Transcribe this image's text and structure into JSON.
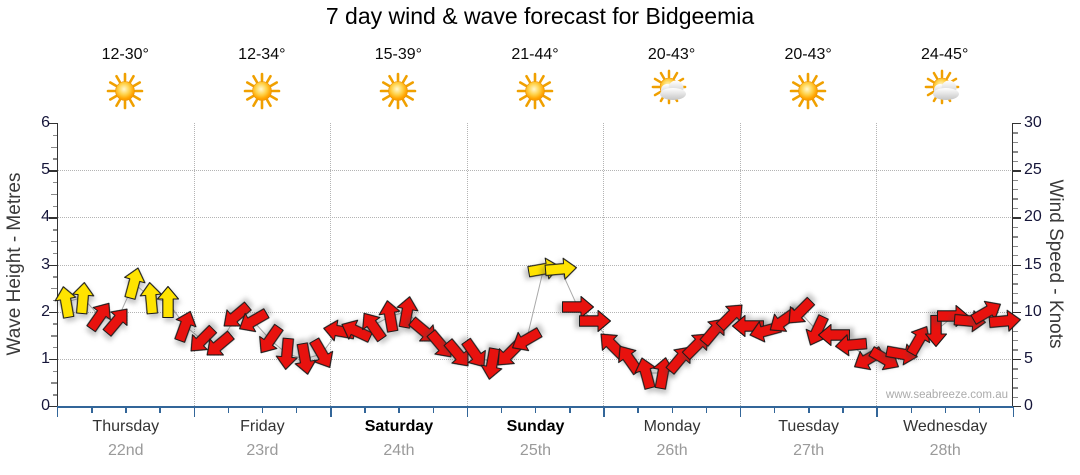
{
  "title": "7 day wind & wave forecast for Bidgeemia",
  "watermark": "www.seabreeze.com.au",
  "axis_left": {
    "title": "Wave Height - Metres",
    "min": 0,
    "max": 6,
    "major_step": 1,
    "unit": "metres"
  },
  "axis_right": {
    "title": "Wind Speed - Knots",
    "min": 0,
    "max": 30,
    "major_step": 5,
    "unit": "knots"
  },
  "days": [
    {
      "name": "Thursday",
      "date": "22nd",
      "temp": "12-30°",
      "icon": "sunny",
      "weekend": false
    },
    {
      "name": "Friday",
      "date": "23rd",
      "temp": "12-34°",
      "icon": "sunny",
      "weekend": false
    },
    {
      "name": "Saturday",
      "date": "24th",
      "temp": "15-39°",
      "icon": "sunny",
      "weekend": true
    },
    {
      "name": "Sunday",
      "date": "25th",
      "temp": "21-44°",
      "icon": "sunny",
      "weekend": true
    },
    {
      "name": "Monday",
      "date": "26th",
      "temp": "20-43°",
      "icon": "partly-cloudy",
      "weekend": false
    },
    {
      "name": "Tuesday",
      "date": "27th",
      "temp": "20-43°",
      "icon": "sunny",
      "weekend": false
    },
    {
      "name": "Wednesday",
      "date": "28th",
      "temp": "24-45°",
      "icon": "partly-cloudy",
      "weekend": false
    }
  ],
  "colors": {
    "arrow_yellow": "#ffe300",
    "arrow_red": "#e8120e",
    "arrow_outline": "#1a1a1a",
    "axis_blue": "#336699",
    "grid_gray": "#b4b4b4",
    "tick_text": "#16163a",
    "day_text": "#333333",
    "date_text": "#9a9a9a",
    "watermark_text": "#ababab"
  },
  "chart_data": {
    "type": "wind-arrow-forecast",
    "interval_hours": 3,
    "arrows_per_day": 8,
    "wind_speed_axis": {
      "min": 0,
      "max": 30,
      "unit": "knots"
    },
    "wave_height_axis": {
      "min": 0,
      "max": 6,
      "unit": "metres"
    },
    "direction_convention": "degrees clockwise from up (north); arrow points toward direction of motion",
    "categories": [
      "Thursday 22nd",
      "Friday 23rd",
      "Saturday 24th",
      "Sunday 25th",
      "Monday 26th",
      "Tuesday 27th",
      "Wednesday 28th"
    ],
    "arrows": [
      {
        "kn": 11,
        "dir": 350,
        "col": "yellow"
      },
      {
        "kn": 11.5,
        "dir": 5,
        "col": "yellow"
      },
      {
        "kn": 9.5,
        "dir": 35,
        "col": "red"
      },
      {
        "kn": 9,
        "dir": 40,
        "col": "red"
      },
      {
        "kn": 13,
        "dir": 15,
        "col": "yellow"
      },
      {
        "kn": 11.5,
        "dir": 355,
        "col": "yellow"
      },
      {
        "kn": 11,
        "dir": 0,
        "col": "yellow"
      },
      {
        "kn": 8.5,
        "dir": 20,
        "col": "red"
      },
      {
        "kn": 7,
        "dir": 225,
        "col": "red"
      },
      {
        "kn": 6.5,
        "dir": 230,
        "col": "red"
      },
      {
        "kn": 9.5,
        "dir": 230,
        "col": "red"
      },
      {
        "kn": 9,
        "dir": 240,
        "col": "red"
      },
      {
        "kn": 7,
        "dir": 215,
        "col": "red"
      },
      {
        "kn": 5.5,
        "dir": 185,
        "col": "red"
      },
      {
        "kn": 5,
        "dir": 170,
        "col": "red"
      },
      {
        "kn": 5.5,
        "dir": 150,
        "col": "red"
      },
      {
        "kn": 8,
        "dir": 280,
        "col": "red"
      },
      {
        "kn": 8,
        "dir": 295,
        "col": "red"
      },
      {
        "kn": 8.5,
        "dir": 325,
        "col": "red"
      },
      {
        "kn": 9.5,
        "dir": 350,
        "col": "red"
      },
      {
        "kn": 10,
        "dir": 10,
        "col": "red"
      },
      {
        "kn": 8,
        "dir": 130,
        "col": "red"
      },
      {
        "kn": 6.5,
        "dir": 140,
        "col": "red"
      },
      {
        "kn": 5.5,
        "dir": 140,
        "col": "red"
      },
      {
        "kn": 5.5,
        "dir": 145,
        "col": "red"
      },
      {
        "kn": 4.5,
        "dir": 190,
        "col": "red"
      },
      {
        "kn": 5.5,
        "dir": 225,
        "col": "red"
      },
      {
        "kn": 7,
        "dir": 240,
        "col": "red"
      },
      {
        "kn": 14.5,
        "dir": 80,
        "col": "yellow"
      },
      {
        "kn": 14.5,
        "dir": 85,
        "col": "yellow"
      },
      {
        "kn": 10.5,
        "dir": 90,
        "col": "red"
      },
      {
        "kn": 9,
        "dir": 90,
        "col": "red"
      },
      {
        "kn": 6.5,
        "dir": 315,
        "col": "red"
      },
      {
        "kn": 5,
        "dir": 325,
        "col": "red"
      },
      {
        "kn": 3.5,
        "dir": 345,
        "col": "red"
      },
      {
        "kn": 3.5,
        "dir": 10,
        "col": "red"
      },
      {
        "kn": 5,
        "dir": 40,
        "col": "red"
      },
      {
        "kn": 6.5,
        "dir": 45,
        "col": "red"
      },
      {
        "kn": 8,
        "dir": 40,
        "col": "red"
      },
      {
        "kn": 9.5,
        "dir": 45,
        "col": "red"
      },
      {
        "kn": 8.5,
        "dir": 270,
        "col": "red"
      },
      {
        "kn": 8,
        "dir": 255,
        "col": "red"
      },
      {
        "kn": 9,
        "dir": 235,
        "col": "red"
      },
      {
        "kn": 10,
        "dir": 225,
        "col": "red"
      },
      {
        "kn": 8,
        "dir": 205,
        "col": "red"
      },
      {
        "kn": 7.5,
        "dir": 270,
        "col": "red"
      },
      {
        "kn": 6.5,
        "dir": 265,
        "col": "red"
      },
      {
        "kn": 5,
        "dir": 240,
        "col": "red"
      },
      {
        "kn": 5,
        "dir": 120,
        "col": "red"
      },
      {
        "kn": 5.5,
        "dir": 100,
        "col": "red"
      },
      {
        "kn": 7,
        "dir": 30,
        "col": "red"
      },
      {
        "kn": 8,
        "dir": 180,
        "col": "red"
      },
      {
        "kn": 9.5,
        "dir": 90,
        "col": "red"
      },
      {
        "kn": 9,
        "dir": 95,
        "col": "red"
      },
      {
        "kn": 10,
        "dir": 60,
        "col": "red"
      },
      {
        "kn": 9,
        "dir": 85,
        "col": "red"
      }
    ]
  }
}
